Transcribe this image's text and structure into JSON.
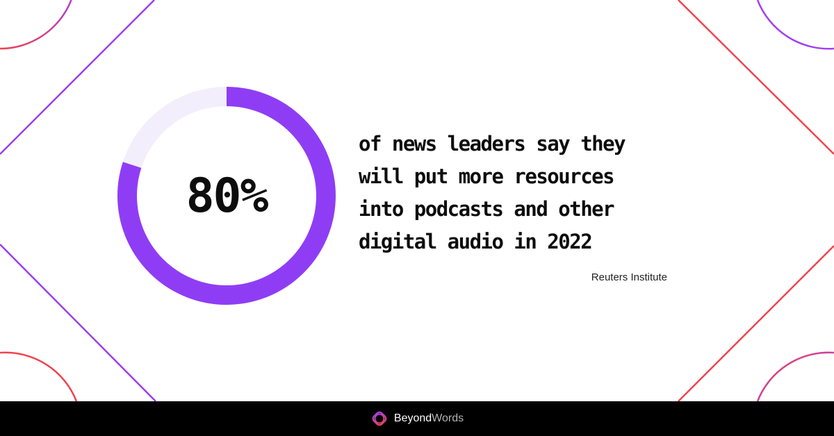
{
  "stat": {
    "value_label": "80%",
    "fraction": 0.8
  },
  "statement": "of news leaders say they\nwill put more resources\ninto podcasts and other\ndigital audio in 2022",
  "source": "Reuters Institute",
  "brand": {
    "name_first": "Beyond",
    "name_second": "Words"
  },
  "colors": {
    "ring_fill": "#8f3df5",
    "ring_track": "#f3eefc",
    "accent_red": "#f0434f",
    "accent_purple": "#a23ff0",
    "footer_bg": "#000000"
  },
  "icons": {
    "logo": "beyondwords-logo-icon"
  }
}
